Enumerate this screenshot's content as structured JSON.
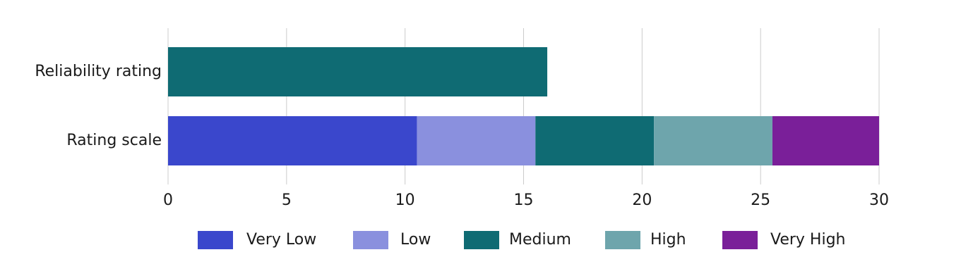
{
  "chart_data": {
    "type": "stacked-barh",
    "categories": [
      "Reliability rating",
      "Rating scale"
    ],
    "series": [
      {
        "name": "Very Low",
        "color": "#3a47cc",
        "values": [
          null,
          10.5
        ]
      },
      {
        "name": "Low",
        "color": "#8a90de",
        "values": [
          null,
          5
        ]
      },
      {
        "name": "Medium",
        "color": "#0f6b73",
        "values": [
          16,
          5
        ]
      },
      {
        "name": "High",
        "color": "#6ea5ac",
        "values": [
          null,
          5
        ]
      },
      {
        "name": "Very High",
        "color": "#7a1f99",
        "values": [
          null,
          4.5
        ]
      }
    ],
    "xlim": [
      0,
      30
    ],
    "xticks": [
      0,
      5,
      10,
      15,
      20,
      25,
      30
    ],
    "grid": true,
    "legend": "bottom"
  }
}
